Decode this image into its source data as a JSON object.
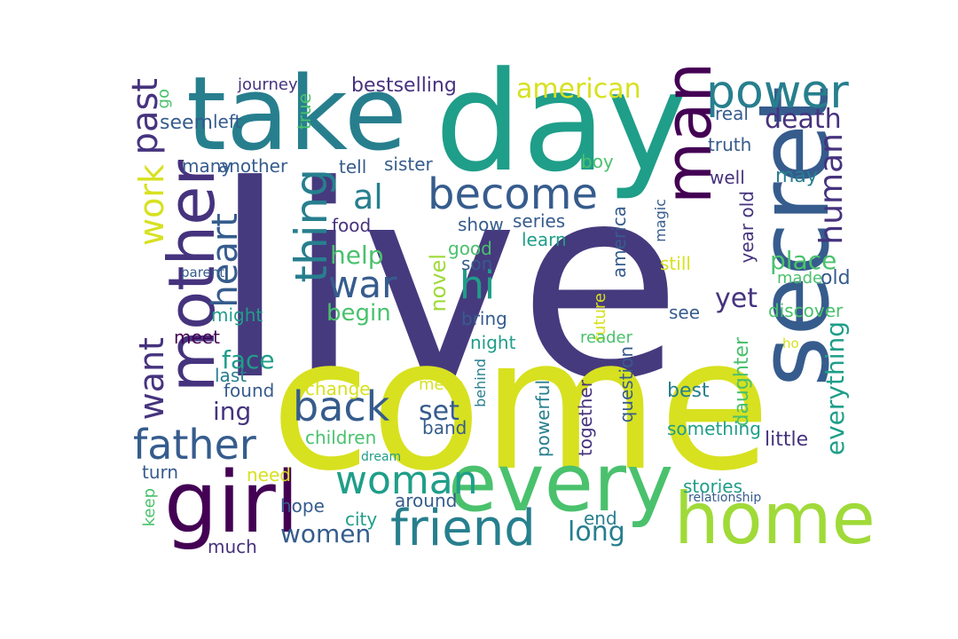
{
  "palette": {
    "navy": "#463a7e",
    "indigo": "#46337e",
    "blue": "#365c8d",
    "teal": "#277f8e",
    "teal2": "#1f9e89",
    "green": "#4ac16d",
    "lime": "#a0da39",
    "yellow": "#d7e11f",
    "purple": "#440154"
  },
  "words": [
    {
      "id": "live",
      "text": "live"
    },
    {
      "id": "come",
      "text": "come"
    },
    {
      "id": "day",
      "text": "day"
    },
    {
      "id": "take",
      "text": "take"
    },
    {
      "id": "secret",
      "text": "secret"
    },
    {
      "id": "every",
      "text": "every"
    },
    {
      "id": "girl",
      "text": "girl"
    },
    {
      "id": "home",
      "text": "home"
    },
    {
      "id": "mother",
      "text": "mother"
    },
    {
      "id": "man",
      "text": "man"
    },
    {
      "id": "friend",
      "text": "friend"
    },
    {
      "id": "power",
      "text": "power"
    },
    {
      "id": "become",
      "text": "become"
    },
    {
      "id": "back",
      "text": "back"
    },
    {
      "id": "father",
      "text": "father"
    },
    {
      "id": "woman",
      "text": "woman"
    },
    {
      "id": "thing",
      "text": "thing"
    },
    {
      "id": "heart",
      "text": "heart"
    },
    {
      "id": "past",
      "text": "past"
    },
    {
      "id": "work",
      "text": "work"
    },
    {
      "id": "want",
      "text": "want"
    },
    {
      "id": "hi",
      "text": "hi"
    },
    {
      "id": "war",
      "text": "war"
    },
    {
      "id": "human",
      "text": "human"
    },
    {
      "id": "al",
      "text": "al"
    },
    {
      "id": "death",
      "text": "death"
    },
    {
      "id": "american",
      "text": "american"
    },
    {
      "id": "women",
      "text": "women"
    },
    {
      "id": "long",
      "text": "long"
    },
    {
      "id": "face",
      "text": "face"
    },
    {
      "id": "place",
      "text": "place"
    },
    {
      "id": "everything",
      "text": "everything"
    },
    {
      "id": "set",
      "text": "set"
    },
    {
      "id": "ing",
      "text": "ing"
    },
    {
      "id": "help",
      "text": "help"
    },
    {
      "id": "begin",
      "text": "begin"
    },
    {
      "id": "yet",
      "text": "yet"
    },
    {
      "id": "novel",
      "text": "novel"
    },
    {
      "id": "daughter",
      "text": "daughter"
    },
    {
      "id": "bestselling",
      "text": "bestselling"
    },
    {
      "id": "journey",
      "text": "journey"
    },
    {
      "id": "another",
      "text": "another"
    },
    {
      "id": "many",
      "text": "many"
    },
    {
      "id": "sister",
      "text": "sister"
    },
    {
      "id": "tell",
      "text": "tell"
    },
    {
      "id": "left",
      "text": "left"
    },
    {
      "id": "seem",
      "text": "seem"
    },
    {
      "id": "true",
      "text": "true"
    },
    {
      "id": "go",
      "text": "go"
    },
    {
      "id": "real",
      "text": "real"
    },
    {
      "id": "truth",
      "text": "truth"
    },
    {
      "id": "boy",
      "text": "boy"
    },
    {
      "id": "well",
      "text": "well"
    },
    {
      "id": "may",
      "text": "may"
    },
    {
      "id": "year_old",
      "text": "year old"
    },
    {
      "id": "magic",
      "text": "magic"
    },
    {
      "id": "food",
      "text": "food"
    },
    {
      "id": "show",
      "text": "show"
    },
    {
      "id": "series",
      "text": "series"
    },
    {
      "id": "learn",
      "text": "learn"
    },
    {
      "id": "good",
      "text": "good"
    },
    {
      "id": "son",
      "text": "son"
    },
    {
      "id": "america",
      "text": "america"
    },
    {
      "id": "still",
      "text": "still"
    },
    {
      "id": "made",
      "text": "made"
    },
    {
      "id": "old",
      "text": "old"
    },
    {
      "id": "parent",
      "text": "parent"
    },
    {
      "id": "might",
      "text": "might"
    },
    {
      "id": "meet",
      "text": "meet"
    },
    {
      "id": "bring",
      "text": "bring"
    },
    {
      "id": "future",
      "text": "future"
    },
    {
      "id": "see",
      "text": "see"
    },
    {
      "id": "discover",
      "text": "discover"
    },
    {
      "id": "night",
      "text": "night"
    },
    {
      "id": "reader",
      "text": "reader"
    },
    {
      "id": "ho",
      "text": "ho"
    },
    {
      "id": "last",
      "text": "last"
    },
    {
      "id": "found",
      "text": "found"
    },
    {
      "id": "change",
      "text": "change"
    },
    {
      "id": "mean",
      "text": "mean"
    },
    {
      "id": "behind",
      "text": "behind"
    },
    {
      "id": "best",
      "text": "best"
    },
    {
      "id": "question",
      "text": "question"
    },
    {
      "id": "together",
      "text": "together"
    },
    {
      "id": "powerful",
      "text": "powerful"
    },
    {
      "id": "band",
      "text": "band"
    },
    {
      "id": "children",
      "text": "children"
    },
    {
      "id": "something",
      "text": "something"
    },
    {
      "id": "little",
      "text": "little"
    },
    {
      "id": "dream",
      "text": "dream"
    },
    {
      "id": "turn",
      "text": "turn"
    },
    {
      "id": "need",
      "text": "need"
    },
    {
      "id": "keep",
      "text": "keep"
    },
    {
      "id": "hope",
      "text": "hope"
    },
    {
      "id": "city",
      "text": "city"
    },
    {
      "id": "around",
      "text": "around"
    },
    {
      "id": "stories",
      "text": "stories"
    },
    {
      "id": "relationship",
      "text": "relationship"
    },
    {
      "id": "end",
      "text": "end"
    },
    {
      "id": "much",
      "text": "much"
    }
  ]
}
